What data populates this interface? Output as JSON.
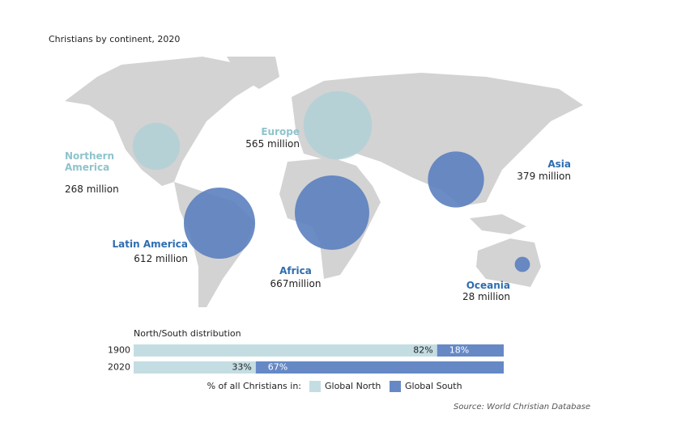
{
  "title": "Christians by continent, 2020",
  "regions": [
    {
      "name": "Northern America",
      "value": 268,
      "value_label": "268 million",
      "group": "north"
    },
    {
      "name": "Europe",
      "value": 565,
      "value_label": "565 million",
      "group": "north"
    },
    {
      "name": "Latin America",
      "value": 612,
      "value_label": "612 million",
      "group": "south"
    },
    {
      "name": "Africa",
      "value": 667,
      "value_label": "667million",
      "group": "south"
    },
    {
      "name": "Asia",
      "value": 379,
      "value_label": "379 million",
      "group": "south"
    },
    {
      "name": "Oceania",
      "value": 28,
      "value_label": "28 million",
      "group": "south"
    }
  ],
  "chart_data": {
    "type": "stacked-bar",
    "title": "North/South distribution",
    "categories": [
      "1900",
      "2020"
    ],
    "xlim": [
      0,
      100
    ],
    "legend_title": "% of all Christians in:",
    "series": [
      {
        "name": "Global North",
        "color": "#c4dde2",
        "values": [
          82,
          33
        ],
        "value_labels": [
          "82%",
          "33%"
        ]
      },
      {
        "name": "Global South",
        "color": "#6689c6",
        "values": [
          18,
          67
        ],
        "value_labels": [
          "18%",
          "67%"
        ]
      }
    ]
  },
  "source": "Source: World Christian Database"
}
